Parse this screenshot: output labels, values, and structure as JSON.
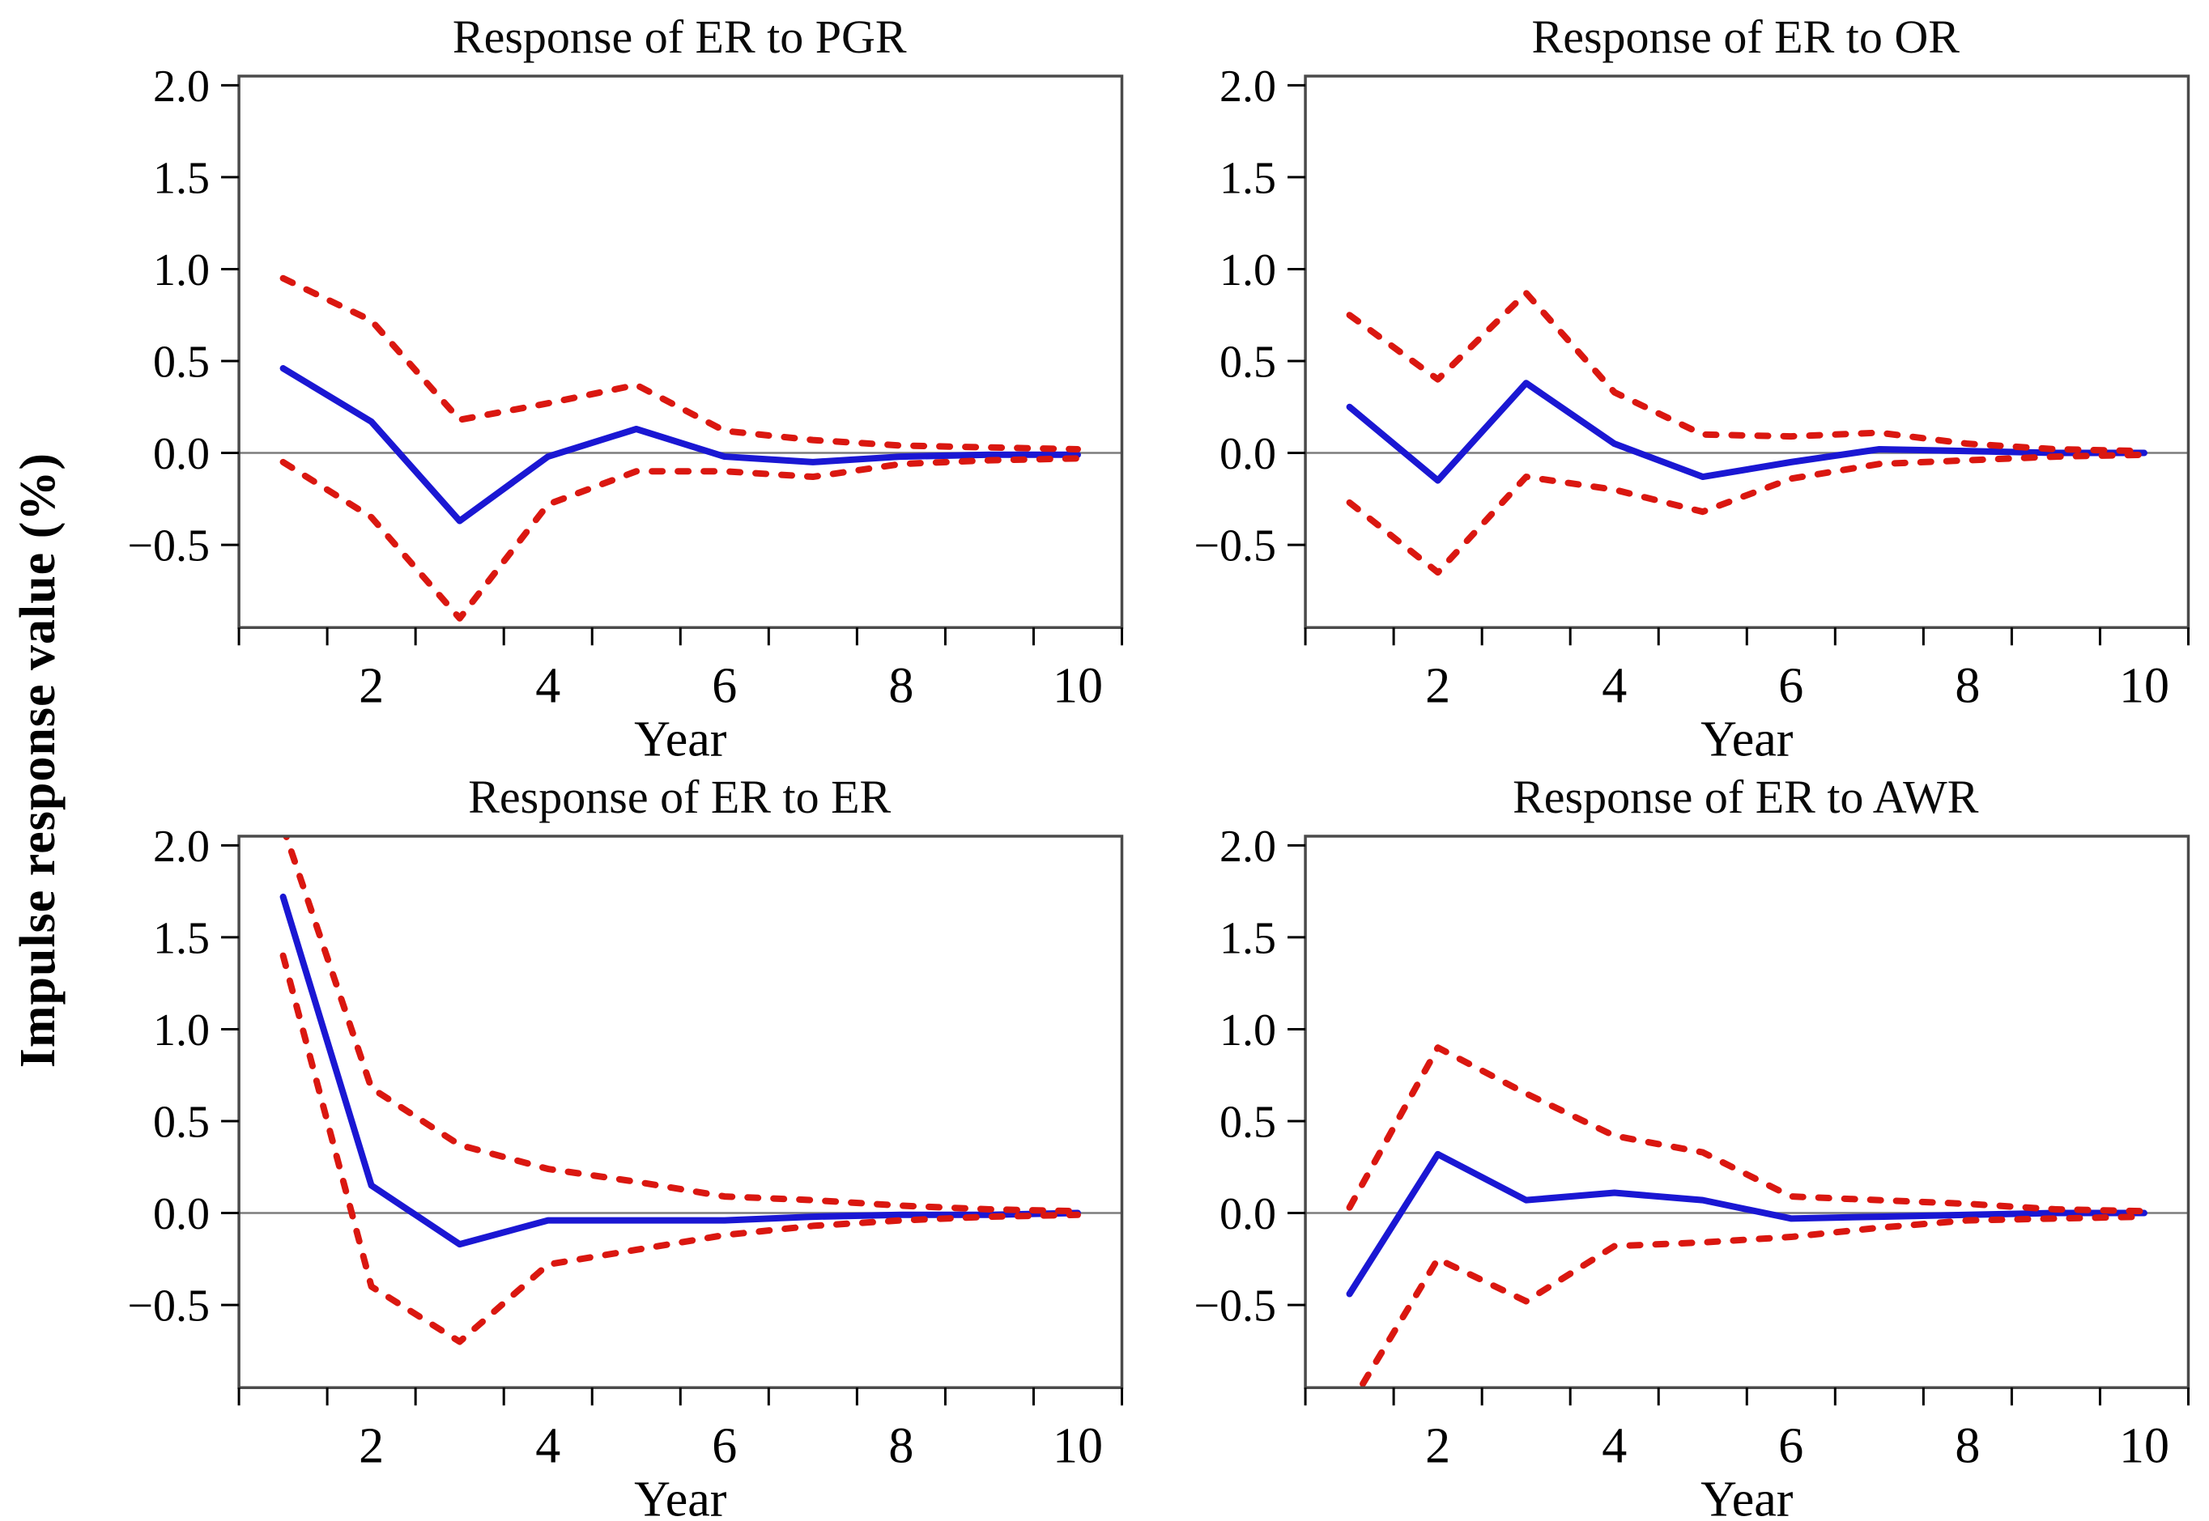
{
  "shared_y_axis_label": "Impulse response value (%)",
  "colors": {
    "response_blue": "#1a17d3",
    "band_red": "#da1710",
    "zero_line_gray": "#7d7d7d",
    "frame_gray": "#4a4a4a",
    "text_black": "#000000",
    "background": "#ffffff"
  },
  "chart_data": [
    {
      "type": "line",
      "title": "Response of ER to PGR",
      "xlabel": "Year",
      "x": [
        1,
        2,
        3,
        4,
        5,
        6,
        7,
        8,
        9,
        10
      ],
      "axes": {
        "xlim": [
          0.5,
          10.5
        ],
        "ylim": [
          -0.95,
          2.05
        ],
        "xtick_positions": [
          0.5,
          1.5,
          2.5,
          3.5,
          4.5,
          5.5,
          6.5,
          7.5,
          8.5,
          9.5,
          10.5
        ],
        "xtick_labels": [
          {
            "x": 2,
            "text": "2"
          },
          {
            "x": 4,
            "text": "4"
          },
          {
            "x": 6,
            "text": "6"
          },
          {
            "x": 8,
            "text": "8"
          },
          {
            "x": 10,
            "text": "10"
          }
        ],
        "ytick_labels": [
          {
            "y": 2.0,
            "text": "2.0"
          },
          {
            "y": 1.5,
            "text": "1.5"
          },
          {
            "y": 1.0,
            "text": "1.0"
          },
          {
            "y": 0.5,
            "text": "0.5"
          },
          {
            "y": 0.0,
            "text": "0.0"
          },
          {
            "y": -0.5,
            "text": "−0.5"
          }
        ],
        "zero_line": 0.0,
        "grid": false,
        "legend": "none"
      },
      "series": [
        {
          "name": "response",
          "color": "#1a17d3",
          "style": "solid",
          "values": [
            0.46,
            0.17,
            -0.37,
            -0.02,
            0.13,
            -0.02,
            -0.05,
            -0.02,
            -0.01,
            -0.01
          ]
        },
        {
          "name": "upper-band",
          "color": "#da1710",
          "style": "dashed",
          "values": [
            0.95,
            0.72,
            0.18,
            0.27,
            0.37,
            0.12,
            0.07,
            0.04,
            0.03,
            0.02
          ]
        },
        {
          "name": "lower-band",
          "color": "#da1710",
          "style": "dashed",
          "values": [
            -0.05,
            -0.35,
            -0.9,
            -0.28,
            -0.1,
            -0.1,
            -0.13,
            -0.06,
            -0.04,
            -0.03
          ]
        }
      ]
    },
    {
      "type": "line",
      "title": "Response of ER to OR",
      "xlabel": "Year",
      "x": [
        1,
        2,
        3,
        4,
        5,
        6,
        7,
        8,
        9,
        10
      ],
      "axes": {
        "xlim": [
          0.5,
          10.5
        ],
        "ylim": [
          -0.95,
          2.05
        ],
        "xtick_positions": [
          0.5,
          1.5,
          2.5,
          3.5,
          4.5,
          5.5,
          6.5,
          7.5,
          8.5,
          9.5,
          10.5
        ],
        "xtick_labels": [
          {
            "x": 2,
            "text": "2"
          },
          {
            "x": 4,
            "text": "4"
          },
          {
            "x": 6,
            "text": "6"
          },
          {
            "x": 8,
            "text": "8"
          },
          {
            "x": 10,
            "text": "10"
          }
        ],
        "ytick_labels": [
          {
            "y": 2.0,
            "text": "2.0"
          },
          {
            "y": 1.5,
            "text": "1.5"
          },
          {
            "y": 1.0,
            "text": "1.0"
          },
          {
            "y": 0.5,
            "text": "0.5"
          },
          {
            "y": 0.0,
            "text": "0.0"
          },
          {
            "y": -0.5,
            "text": "−0.5"
          }
        ],
        "zero_line": 0.0,
        "grid": false,
        "legend": "none"
      },
      "series": [
        {
          "name": "response",
          "color": "#1a17d3",
          "style": "solid",
          "values": [
            0.25,
            -0.15,
            0.38,
            0.05,
            -0.13,
            -0.05,
            0.02,
            0.01,
            0.0,
            0.0
          ]
        },
        {
          "name": "upper-band",
          "color": "#da1710",
          "style": "dashed",
          "values": [
            0.75,
            0.4,
            0.87,
            0.33,
            0.1,
            0.09,
            0.11,
            0.05,
            0.02,
            0.01
          ]
        },
        {
          "name": "lower-band",
          "color": "#da1710",
          "style": "dashed",
          "values": [
            -0.27,
            -0.65,
            -0.13,
            -0.2,
            -0.32,
            -0.14,
            -0.06,
            -0.04,
            -0.02,
            -0.01
          ]
        }
      ]
    },
    {
      "type": "line",
      "title": "Response of ER to ER",
      "xlabel": "Year",
      "x": [
        1,
        2,
        3,
        4,
        5,
        6,
        7,
        8,
        9,
        10
      ],
      "axes": {
        "xlim": [
          0.5,
          10.5
        ],
        "ylim": [
          -0.95,
          2.05
        ],
        "xtick_positions": [
          0.5,
          1.5,
          2.5,
          3.5,
          4.5,
          5.5,
          6.5,
          7.5,
          8.5,
          9.5,
          10.5
        ],
        "xtick_labels": [
          {
            "x": 2,
            "text": "2"
          },
          {
            "x": 4,
            "text": "4"
          },
          {
            "x": 6,
            "text": "6"
          },
          {
            "x": 8,
            "text": "8"
          },
          {
            "x": 10,
            "text": "10"
          }
        ],
        "ytick_labels": [
          {
            "y": 2.0,
            "text": "2.0"
          },
          {
            "y": 1.5,
            "text": "1.5"
          },
          {
            "y": 1.0,
            "text": "1.0"
          },
          {
            "y": 0.5,
            "text": "0.5"
          },
          {
            "y": 0.0,
            "text": "0.0"
          },
          {
            "y": -0.5,
            "text": "−0.5"
          }
        ],
        "zero_line": 0.0,
        "grid": false,
        "legend": "none"
      },
      "series": [
        {
          "name": "response",
          "color": "#1a17d3",
          "style": "solid",
          "values": [
            1.72,
            0.15,
            -0.17,
            -0.04,
            -0.04,
            -0.04,
            -0.02,
            -0.01,
            -0.01,
            0.0
          ]
        },
        {
          "name": "upper-band",
          "color": "#da1710",
          "style": "dashed",
          "values": [
            2.1,
            0.68,
            0.37,
            0.24,
            0.17,
            0.09,
            0.07,
            0.04,
            0.02,
            0.01
          ]
        },
        {
          "name": "lower-band",
          "color": "#da1710",
          "style": "dashed",
          "values": [
            1.4,
            -0.4,
            -0.7,
            -0.28,
            -0.2,
            -0.12,
            -0.07,
            -0.04,
            -0.02,
            -0.01
          ]
        }
      ]
    },
    {
      "type": "line",
      "title": "Response of ER to AWR",
      "xlabel": "Year",
      "x": [
        1,
        2,
        3,
        4,
        5,
        6,
        7,
        8,
        9,
        10
      ],
      "axes": {
        "xlim": [
          0.5,
          10.5
        ],
        "ylim": [
          -0.95,
          2.05
        ],
        "xtick_positions": [
          0.5,
          1.5,
          2.5,
          3.5,
          4.5,
          5.5,
          6.5,
          7.5,
          8.5,
          9.5,
          10.5
        ],
        "xtick_labels": [
          {
            "x": 2,
            "text": "2"
          },
          {
            "x": 4,
            "text": "4"
          },
          {
            "x": 6,
            "text": "6"
          },
          {
            "x": 8,
            "text": "8"
          },
          {
            "x": 10,
            "text": "10"
          }
        ],
        "ytick_labels": [
          {
            "y": 2.0,
            "text": "2.0"
          },
          {
            "y": 1.5,
            "text": "1.5"
          },
          {
            "y": 1.0,
            "text": "1.0"
          },
          {
            "y": 0.5,
            "text": "0.5"
          },
          {
            "y": 0.0,
            "text": "0.0"
          },
          {
            "y": -0.5,
            "text": "−0.5"
          }
        ],
        "zero_line": 0.0,
        "grid": false,
        "legend": "none"
      },
      "series": [
        {
          "name": "response",
          "color": "#1a17d3",
          "style": "solid",
          "values": [
            -0.44,
            0.32,
            0.07,
            0.11,
            0.07,
            -0.03,
            -0.02,
            -0.01,
            0.0,
            0.0
          ]
        },
        {
          "name": "upper-band",
          "color": "#da1710",
          "style": "dashed",
          "values": [
            0.03,
            0.9,
            0.65,
            0.42,
            0.33,
            0.09,
            0.07,
            0.05,
            0.02,
            0.01
          ]
        },
        {
          "name": "lower-band",
          "color": "#da1710",
          "style": "dashed",
          "values": [
            -1.05,
            -0.25,
            -0.48,
            -0.18,
            -0.16,
            -0.13,
            -0.08,
            -0.04,
            -0.03,
            -0.02
          ]
        }
      ]
    }
  ]
}
